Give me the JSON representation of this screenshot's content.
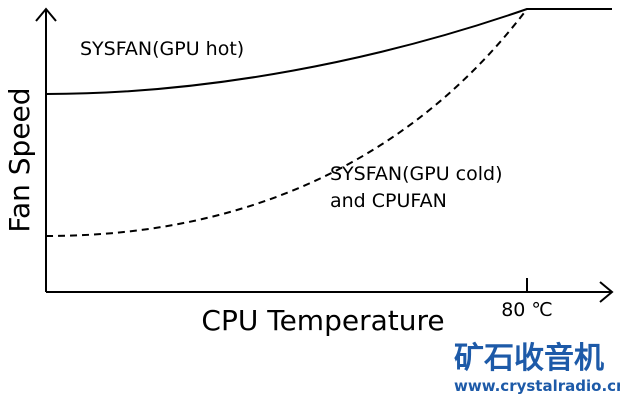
{
  "diagram": {
    "y_axis_label": "Fan Speed",
    "x_axis_label": "CPU Temperature",
    "x_tick_label": "80 ℃",
    "curves": [
      {
        "label_lines": [
          "SYSFAN(GPU hot)"
        ]
      },
      {
        "label_lines": [
          "SYSFAN(GPU cold)",
          "and CPUFAN"
        ]
      }
    ]
  },
  "watermark": {
    "title": "矿石收音机",
    "url": "www.crystalradio.cn"
  }
}
